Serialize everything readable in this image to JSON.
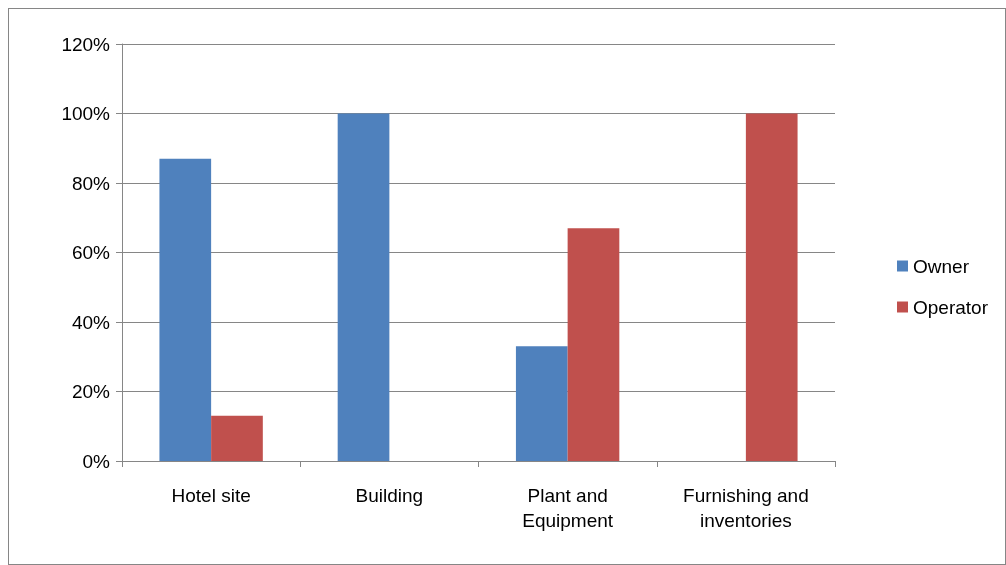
{
  "chart_data": {
    "type": "bar",
    "categories": [
      "Hotel site",
      "Building",
      "Plant and\nEquipment",
      "Furnishing and\ninventories"
    ],
    "series": [
      {
        "name": "Owner",
        "color": "#4f81bd",
        "values": [
          87,
          100,
          33,
          0
        ]
      },
      {
        "name": "Operator",
        "color": "#c0504d",
        "values": [
          13,
          0,
          67,
          100
        ]
      }
    ],
    "ylim": [
      0,
      120
    ],
    "yticks": [
      {
        "value": 0,
        "label": "0%"
      },
      {
        "value": 20,
        "label": "20%"
      },
      {
        "value": 40,
        "label": "40%"
      },
      {
        "value": 60,
        "label": "60%"
      },
      {
        "value": 80,
        "label": "80%"
      },
      {
        "value": 100,
        "label": "100%"
      },
      {
        "value": 120,
        "label": "120%"
      }
    ],
    "grid": "y",
    "legend": "right"
  }
}
